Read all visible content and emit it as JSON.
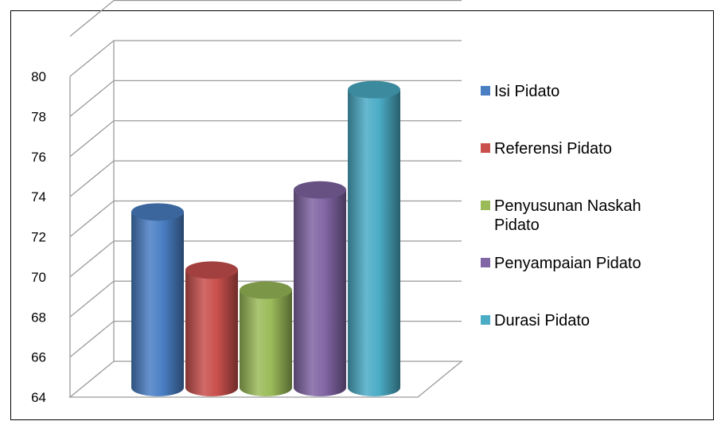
{
  "chart_data": {
    "type": "bar",
    "style": "3d-cylinder",
    "categories": [
      "Isi Pidato",
      "Referensi Pidato",
      "Penyusunan Naskah Pidato",
      "Penyampaian Pidato",
      "Durasi Pidato"
    ],
    "values": [
      73.0,
      70.1,
      69.1,
      74.1,
      79.1
    ],
    "colors": [
      "#4a7fc4",
      "#c9504d",
      "#9bbb59",
      "#8165a4",
      "#4bacc6"
    ],
    "ylim": [
      64,
      80
    ],
    "yticks": [
      "64",
      "66",
      "68",
      "70",
      "72",
      "74",
      "76",
      "78",
      "80"
    ],
    "grid": true,
    "legend": {
      "position": "right",
      "entries": [
        {
          "lines": [
            "Isi Pidato"
          ]
        },
        {
          "lines": [
            "Referensi Pidato"
          ]
        },
        {
          "lines": [
            "Penyusunan Naskah",
            "Pidato"
          ]
        },
        {
          "lines": [
            "Penyampaian Pidato"
          ]
        },
        {
          "lines": [
            "Durasi Pidato"
          ]
        }
      ]
    }
  }
}
